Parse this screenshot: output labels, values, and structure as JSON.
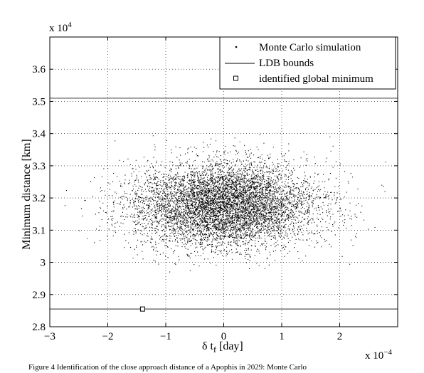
{
  "chart_data": {
    "type": "scatter",
    "title": "",
    "xlabel": "δ t_f [day]",
    "ylabel": "Minimum distance [km]",
    "x_multiplier": "x 10^-4",
    "y_multiplier": "x 10^4",
    "xlim": [
      -3,
      3
    ],
    "ylim": [
      2.8,
      3.7
    ],
    "x_ticks": [
      "-3",
      "-2",
      "-1",
      "0",
      "1",
      "2"
    ],
    "y_ticks": [
      "2.8",
      "2.9",
      "3",
      "3.1",
      "3.2",
      "3.3",
      "3.4",
      "3.5",
      "3.6"
    ],
    "grid": true,
    "legend_position": "top-right",
    "series": [
      {
        "name": "Monte Carlo simulation",
        "marker": "dot",
        "distribution": {
          "x_mean": 0.0,
          "x_std": 0.8,
          "y_mean": 3.18,
          "y_std": 0.065
        },
        "count": 7000
      },
      {
        "name": "LDB bounds",
        "marker": "line",
        "y_values": [
          3.51,
          2.855
        ]
      },
      {
        "name": "identified global minimum",
        "marker": "square",
        "x": -1.4,
        "y": 2.855
      }
    ]
  },
  "caption": "Figure 4 Identification of the close approach distance of a Apophis in 2029: Monte Carlo"
}
